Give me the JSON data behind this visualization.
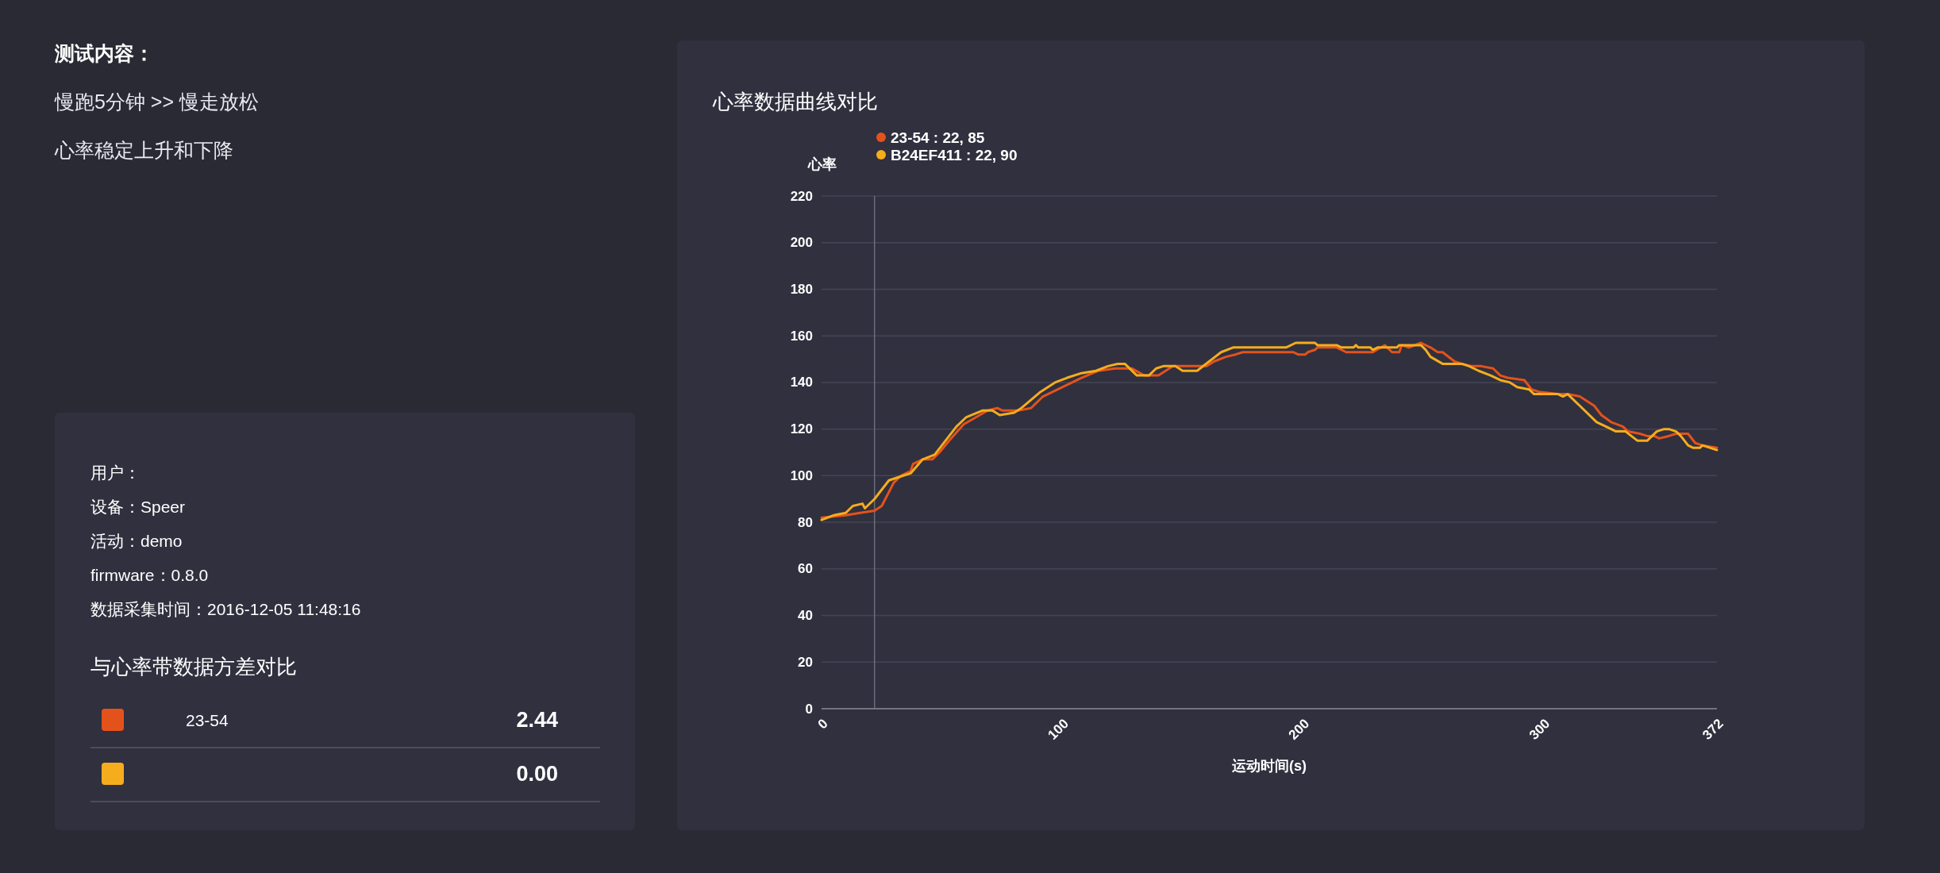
{
  "chart_data": [
    {
      "type": "other",
      "title": "测试内容：",
      "annotations": [
        "慢跑5分钟 >> 慢走放松",
        "心率稳定上升和下降"
      ]
    },
    {
      "type": "other",
      "annotations": [
        "用户：",
        "设备：Speer",
        "活动：demo",
        "firmware：0.8.0",
        "数据采集时间：2016-12-05 11:48:16"
      ]
    },
    {
      "type": "other",
      "title": "与心率带数据方差对比",
      "categories": [
        "23-54",
        null
      ],
      "value_labels": [
        "2.44",
        "0.00"
      ]
    },
    {
      "type": "line",
      "title": "心率数据曲线对比",
      "xlabel": "运动时间(s)",
      "ylabel": "心率",
      "xlim": [
        0,
        372
      ],
      "xticks": [
        0,
        100,
        200,
        300,
        372
      ],
      "ylim": [
        0,
        220
      ],
      "yticks": [
        0,
        20,
        40,
        60,
        80,
        100,
        120,
        140,
        160,
        180,
        200,
        220
      ],
      "grid": "y",
      "legend": "top left",
      "line_style": "solid",
      "ref_lines": [
        {
          "axis": "x",
          "value": 22
        }
      ],
      "series": [
        {
          "name": "23-54 : 22, 85",
          "color": "#e4521b",
          "x": [
            0,
            10,
            16,
            22,
            25,
            30,
            33,
            37,
            38,
            42,
            46,
            49,
            53,
            59,
            64,
            69,
            73,
            75,
            82,
            87,
            92,
            100,
            108,
            115,
            122,
            129,
            134,
            140,
            146,
            160,
            163,
            168,
            172,
            175,
            196,
            198,
            201,
            202,
            205,
            206,
            214,
            218,
            229,
            234,
            237,
            240,
            241,
            244,
            249,
            253,
            256,
            258,
            263,
            266,
            270,
            274,
            279,
            282,
            285,
            292,
            295,
            298,
            306,
            310,
            315,
            321,
            324,
            328,
            333,
            335,
            340,
            343,
            346,
            348,
            352,
            355,
            360,
            363,
            366,
            372
          ],
          "values": [
            82,
            83,
            84,
            85,
            87,
            97,
            100,
            102,
            105,
            107,
            107,
            110,
            115,
            122,
            125,
            128,
            129,
            128,
            128,
            129,
            134,
            138,
            142,
            145,
            146,
            146,
            143,
            143,
            147,
            147,
            149,
            151,
            152,
            153,
            153,
            152,
            152,
            153,
            154,
            155,
            155,
            153,
            153,
            156,
            153,
            153,
            156,
            155,
            157,
            155,
            153,
            153,
            149,
            148,
            147,
            147,
            146,
            143,
            142,
            141,
            137,
            136,
            135,
            135,
            134,
            130,
            126,
            123,
            121,
            119,
            118,
            117,
            117,
            116,
            117,
            118,
            118,
            114,
            113,
            112
          ]
        },
        {
          "name": "B24EF411 : 22, 90",
          "color": "#f5ad1d",
          "x": [
            0,
            5,
            10,
            13,
            17,
            18,
            22,
            28,
            31,
            37,
            42,
            47,
            56,
            60,
            67,
            71,
            74,
            80,
            83,
            91,
            97,
            102,
            108,
            114,
            119,
            123,
            126,
            131,
            136,
            139,
            142,
            147,
            150,
            156,
            161,
            166,
            171,
            193,
            197,
            205,
            206,
            214,
            216,
            221,
            222,
            223,
            228,
            229,
            231,
            239,
            240,
            249,
            251,
            253,
            258,
            266,
            269,
            273,
            278,
            282,
            286,
            289,
            294,
            296,
            306,
            308,
            310,
            315,
            322,
            326,
            330,
            334,
            339,
            343,
            347,
            350,
            352,
            355,
            357,
            360,
            362,
            365,
            366,
            369,
            372
          ],
          "values": [
            81,
            83,
            84,
            87,
            88,
            86,
            90,
            98,
            99,
            101,
            107,
            109,
            121,
            125,
            128,
            128,
            126,
            127,
            129,
            136,
            140,
            142,
            144,
            145,
            147,
            148,
            148,
            143,
            143,
            146,
            147,
            147,
            145,
            145,
            149,
            153,
            155,
            155,
            157,
            157,
            156,
            156,
            155,
            155,
            156,
            155,
            155,
            154,
            155,
            155,
            156,
            156,
            154,
            151,
            148,
            148,
            147,
            145,
            143,
            141,
            140,
            138,
            137,
            135,
            135,
            134,
            135,
            130,
            123,
            121,
            119,
            119,
            115,
            115,
            119,
            120,
            120,
            119,
            117,
            113,
            112,
            112,
            113,
            112,
            111
          ]
        }
      ]
    }
  ]
}
